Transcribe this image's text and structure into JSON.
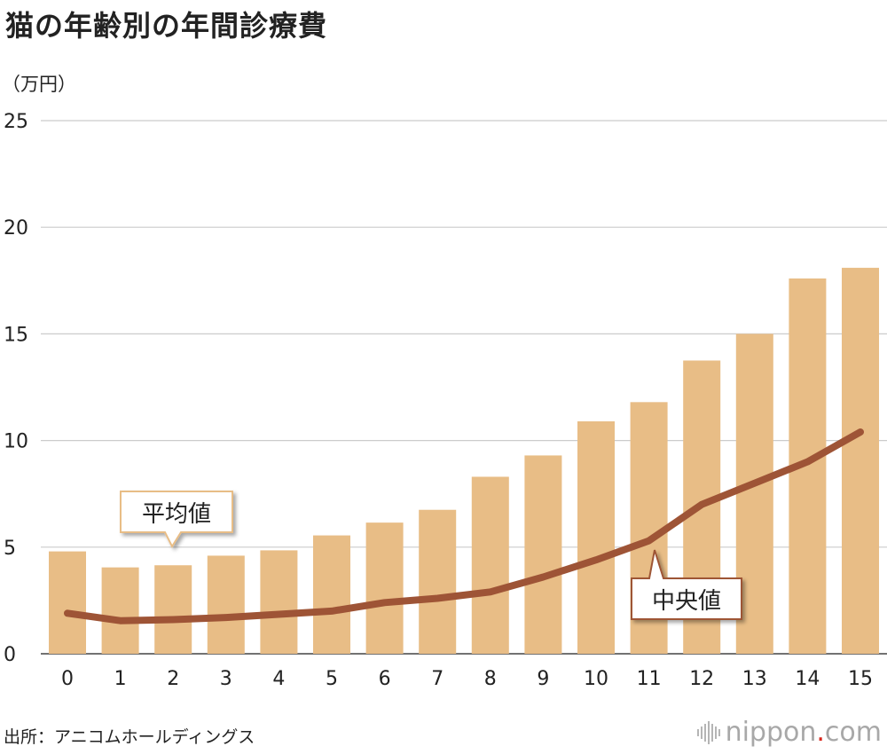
{
  "title": "猫の年齢別の年間診療費",
  "source": "出所：アニコムホールディングス",
  "brand": {
    "name": "nippon",
    "dot": ".",
    "tld": "com"
  },
  "colors": {
    "bar": "#e8bd86",
    "line": "#9e5436",
    "grid": "#cccccc",
    "text": "#222222"
  },
  "chart_data": {
    "type": "bar",
    "unit_label": "（万円）",
    "categories": [
      "0",
      "1",
      "2",
      "3",
      "4",
      "5",
      "6",
      "7",
      "8",
      "9",
      "10",
      "11",
      "12",
      "13",
      "14",
      "15"
    ],
    "ylim": [
      0,
      25
    ],
    "yticks": [
      0,
      5,
      10,
      15,
      20,
      25
    ],
    "grid": true,
    "series": [
      {
        "name": "平均値",
        "type": "bar",
        "values": [
          4.8,
          4.05,
          4.15,
          4.6,
          4.85,
          5.55,
          6.15,
          6.75,
          8.3,
          9.3,
          10.9,
          11.8,
          13.75,
          15.0,
          17.6,
          18.1
        ]
      },
      {
        "name": "中央値",
        "type": "line",
        "values": [
          1.9,
          1.55,
          1.6,
          1.7,
          1.85,
          2.0,
          2.4,
          2.6,
          2.9,
          3.6,
          4.4,
          5.3,
          7.0,
          8.0,
          9.0,
          10.4
        ]
      }
    ]
  }
}
